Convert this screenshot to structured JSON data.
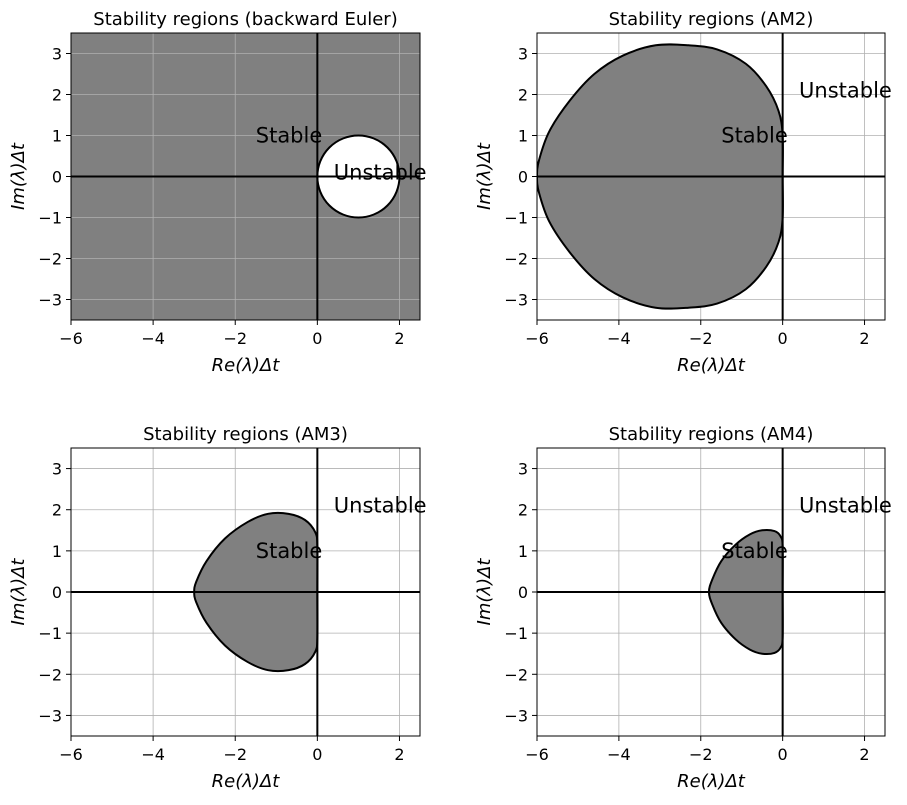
{
  "figure": {
    "panels": [
      {
        "title": "Stability regions (backward Euler)",
        "xlabel": "Re(λ)Δt",
        "ylabel": "Im(λ)Δt",
        "xticks": [
          "−6",
          "−4",
          "−2",
          "0",
          "2"
        ],
        "yticks": [
          "−3",
          "−2",
          "−1",
          "0",
          "1",
          "2",
          "3"
        ],
        "stable_label": "Stable",
        "unstable_label": "Unstable"
      },
      {
        "title": "Stability regions (AM2)",
        "xlabel": "Re(λ)Δt",
        "ylabel": "Im(λ)Δt",
        "xticks": [
          "−6",
          "−4",
          "−2",
          "0",
          "2"
        ],
        "yticks": [
          "−3",
          "−2",
          "−1",
          "0",
          "1",
          "2",
          "3"
        ],
        "stable_label": "Stable",
        "unstable_label": "Unstable"
      },
      {
        "title": "Stability regions (AM3)",
        "xlabel": "Re(λ)Δt",
        "ylabel": "Im(λ)Δt",
        "xticks": [
          "−6",
          "−4",
          "−2",
          "0",
          "2"
        ],
        "yticks": [
          "−3",
          "−2",
          "−1",
          "0",
          "1",
          "2",
          "3"
        ],
        "stable_label": "Stable",
        "unstable_label": "Unstable"
      },
      {
        "title": "Stability regions (AM4)",
        "xlabel": "Re(λ)Δt",
        "ylabel": "Im(λ)Δt",
        "xticks": [
          "−6",
          "−4",
          "−2",
          "0",
          "2"
        ],
        "yticks": [
          "−3",
          "−2",
          "−1",
          "0",
          "1",
          "2",
          "3"
        ],
        "stable_label": "Stable",
        "unstable_label": "Unstable"
      }
    ]
  },
  "chart_data": [
    {
      "type": "area",
      "method": "backward Euler",
      "title": "Stability regions (backward Euler)",
      "xlabel": "Re(λ)Δt",
      "ylabel": "Im(λ)Δt",
      "xlim": [
        -6,
        2.5
      ],
      "ylim": [
        -3.5,
        3.5
      ],
      "grid": true,
      "stable_fill": "#808080",
      "boundary_color": "#000000",
      "stable_region": "exterior of boundary",
      "boundary_center": [
        1,
        0
      ],
      "boundary_radius": 1,
      "annotations": [
        {
          "text": "Stable",
          "x": -1.5,
          "y": 1
        },
        {
          "text": "Unstable",
          "x": 0.4,
          "y": 0.1
        }
      ]
    },
    {
      "type": "area",
      "method": "AM2",
      "title": "Stability regions (AM2)",
      "xlabel": "Re(λ)Δt",
      "ylabel": "Im(λ)Δt",
      "xlim": [
        -6,
        2.5
      ],
      "ylim": [
        -3.5,
        3.5
      ],
      "grid": true,
      "stable_fill": "#808080",
      "boundary_color": "#000000",
      "stable_region": "interior of boundary",
      "boundary_points": [
        [
          0,
          0
        ],
        [
          0,
          1.0
        ],
        [
          -0.1,
          1.6
        ],
        [
          -0.4,
          2.2
        ],
        [
          -0.9,
          2.75
        ],
        [
          -1.6,
          3.1
        ],
        [
          -2.3,
          3.2
        ],
        [
          -3.1,
          3.2
        ],
        [
          -3.9,
          2.95
        ],
        [
          -4.6,
          2.5
        ],
        [
          -5.2,
          1.85
        ],
        [
          -5.7,
          1.1
        ],
        [
          -5.95,
          0.4
        ],
        [
          -6.0,
          0
        ],
        [
          -5.95,
          -0.4
        ],
        [
          -5.7,
          -1.1
        ],
        [
          -5.2,
          -1.85
        ],
        [
          -4.6,
          -2.5
        ],
        [
          -3.9,
          -2.95
        ],
        [
          -3.1,
          -3.2
        ],
        [
          -2.3,
          -3.2
        ],
        [
          -1.6,
          -3.1
        ],
        [
          -0.9,
          -2.75
        ],
        [
          -0.4,
          -2.2
        ],
        [
          -0.1,
          -1.6
        ],
        [
          0,
          -1.0
        ]
      ],
      "annotations": [
        {
          "text": "Stable",
          "x": -1.5,
          "y": 1
        },
        {
          "text": "Unstable",
          "x": 0.4,
          "y": 2.1
        }
      ]
    },
    {
      "type": "area",
      "method": "AM3",
      "title": "Stability regions (AM3)",
      "xlabel": "Re(λ)Δt",
      "ylabel": "Im(λ)Δt",
      "xlim": [
        -6,
        2.5
      ],
      "ylim": [
        -3.5,
        3.5
      ],
      "grid": true,
      "stable_fill": "#808080",
      "boundary_color": "#000000",
      "stable_region": "interior of boundary",
      "boundary_points": [
        [
          0,
          0
        ],
        [
          0,
          1.1
        ],
        [
          -0.05,
          1.45
        ],
        [
          -0.3,
          1.75
        ],
        [
          -0.7,
          1.9
        ],
        [
          -1.2,
          1.9
        ],
        [
          -1.7,
          1.7
        ],
        [
          -2.25,
          1.3
        ],
        [
          -2.7,
          0.75
        ],
        [
          -2.95,
          0.25
        ],
        [
          -3.0,
          0
        ],
        [
          -2.95,
          -0.25
        ],
        [
          -2.7,
          -0.75
        ],
        [
          -2.25,
          -1.3
        ],
        [
          -1.7,
          -1.7
        ],
        [
          -1.2,
          -1.9
        ],
        [
          -0.7,
          -1.9
        ],
        [
          -0.3,
          -1.75
        ],
        [
          -0.05,
          -1.45
        ],
        [
          0,
          -1.1
        ]
      ],
      "annotations": [
        {
          "text": "Stable",
          "x": -1.5,
          "y": 1
        },
        {
          "text": "Unstable",
          "x": 0.4,
          "y": 2.1
        }
      ]
    },
    {
      "type": "area",
      "method": "AM4",
      "title": "Stability regions (AM4)",
      "xlabel": "Re(λ)Δt",
      "ylabel": "Im(λ)Δt",
      "xlim": [
        -6,
        2.5
      ],
      "ylim": [
        -3.5,
        3.5
      ],
      "grid": true,
      "stable_fill": "#808080",
      "boundary_color": "#000000",
      "stable_region": "interior of boundary",
      "boundary_points": [
        [
          0,
          0
        ],
        [
          0,
          1.1
        ],
        [
          -0.05,
          1.35
        ],
        [
          -0.2,
          1.48
        ],
        [
          -0.5,
          1.5
        ],
        [
          -0.8,
          1.4
        ],
        [
          -1.15,
          1.15
        ],
        [
          -1.5,
          0.75
        ],
        [
          -1.72,
          0.3
        ],
        [
          -1.8,
          0
        ],
        [
          -1.72,
          -0.3
        ],
        [
          -1.5,
          -0.75
        ],
        [
          -1.15,
          -1.15
        ],
        [
          -0.8,
          -1.4
        ],
        [
          -0.5,
          -1.5
        ],
        [
          -0.2,
          -1.48
        ],
        [
          -0.05,
          -1.35
        ],
        [
          0,
          -1.1
        ]
      ],
      "annotations": [
        {
          "text": "Stable",
          "x": -1.5,
          "y": 1
        },
        {
          "text": "Unstable",
          "x": 0.4,
          "y": 2.1
        }
      ]
    }
  ]
}
